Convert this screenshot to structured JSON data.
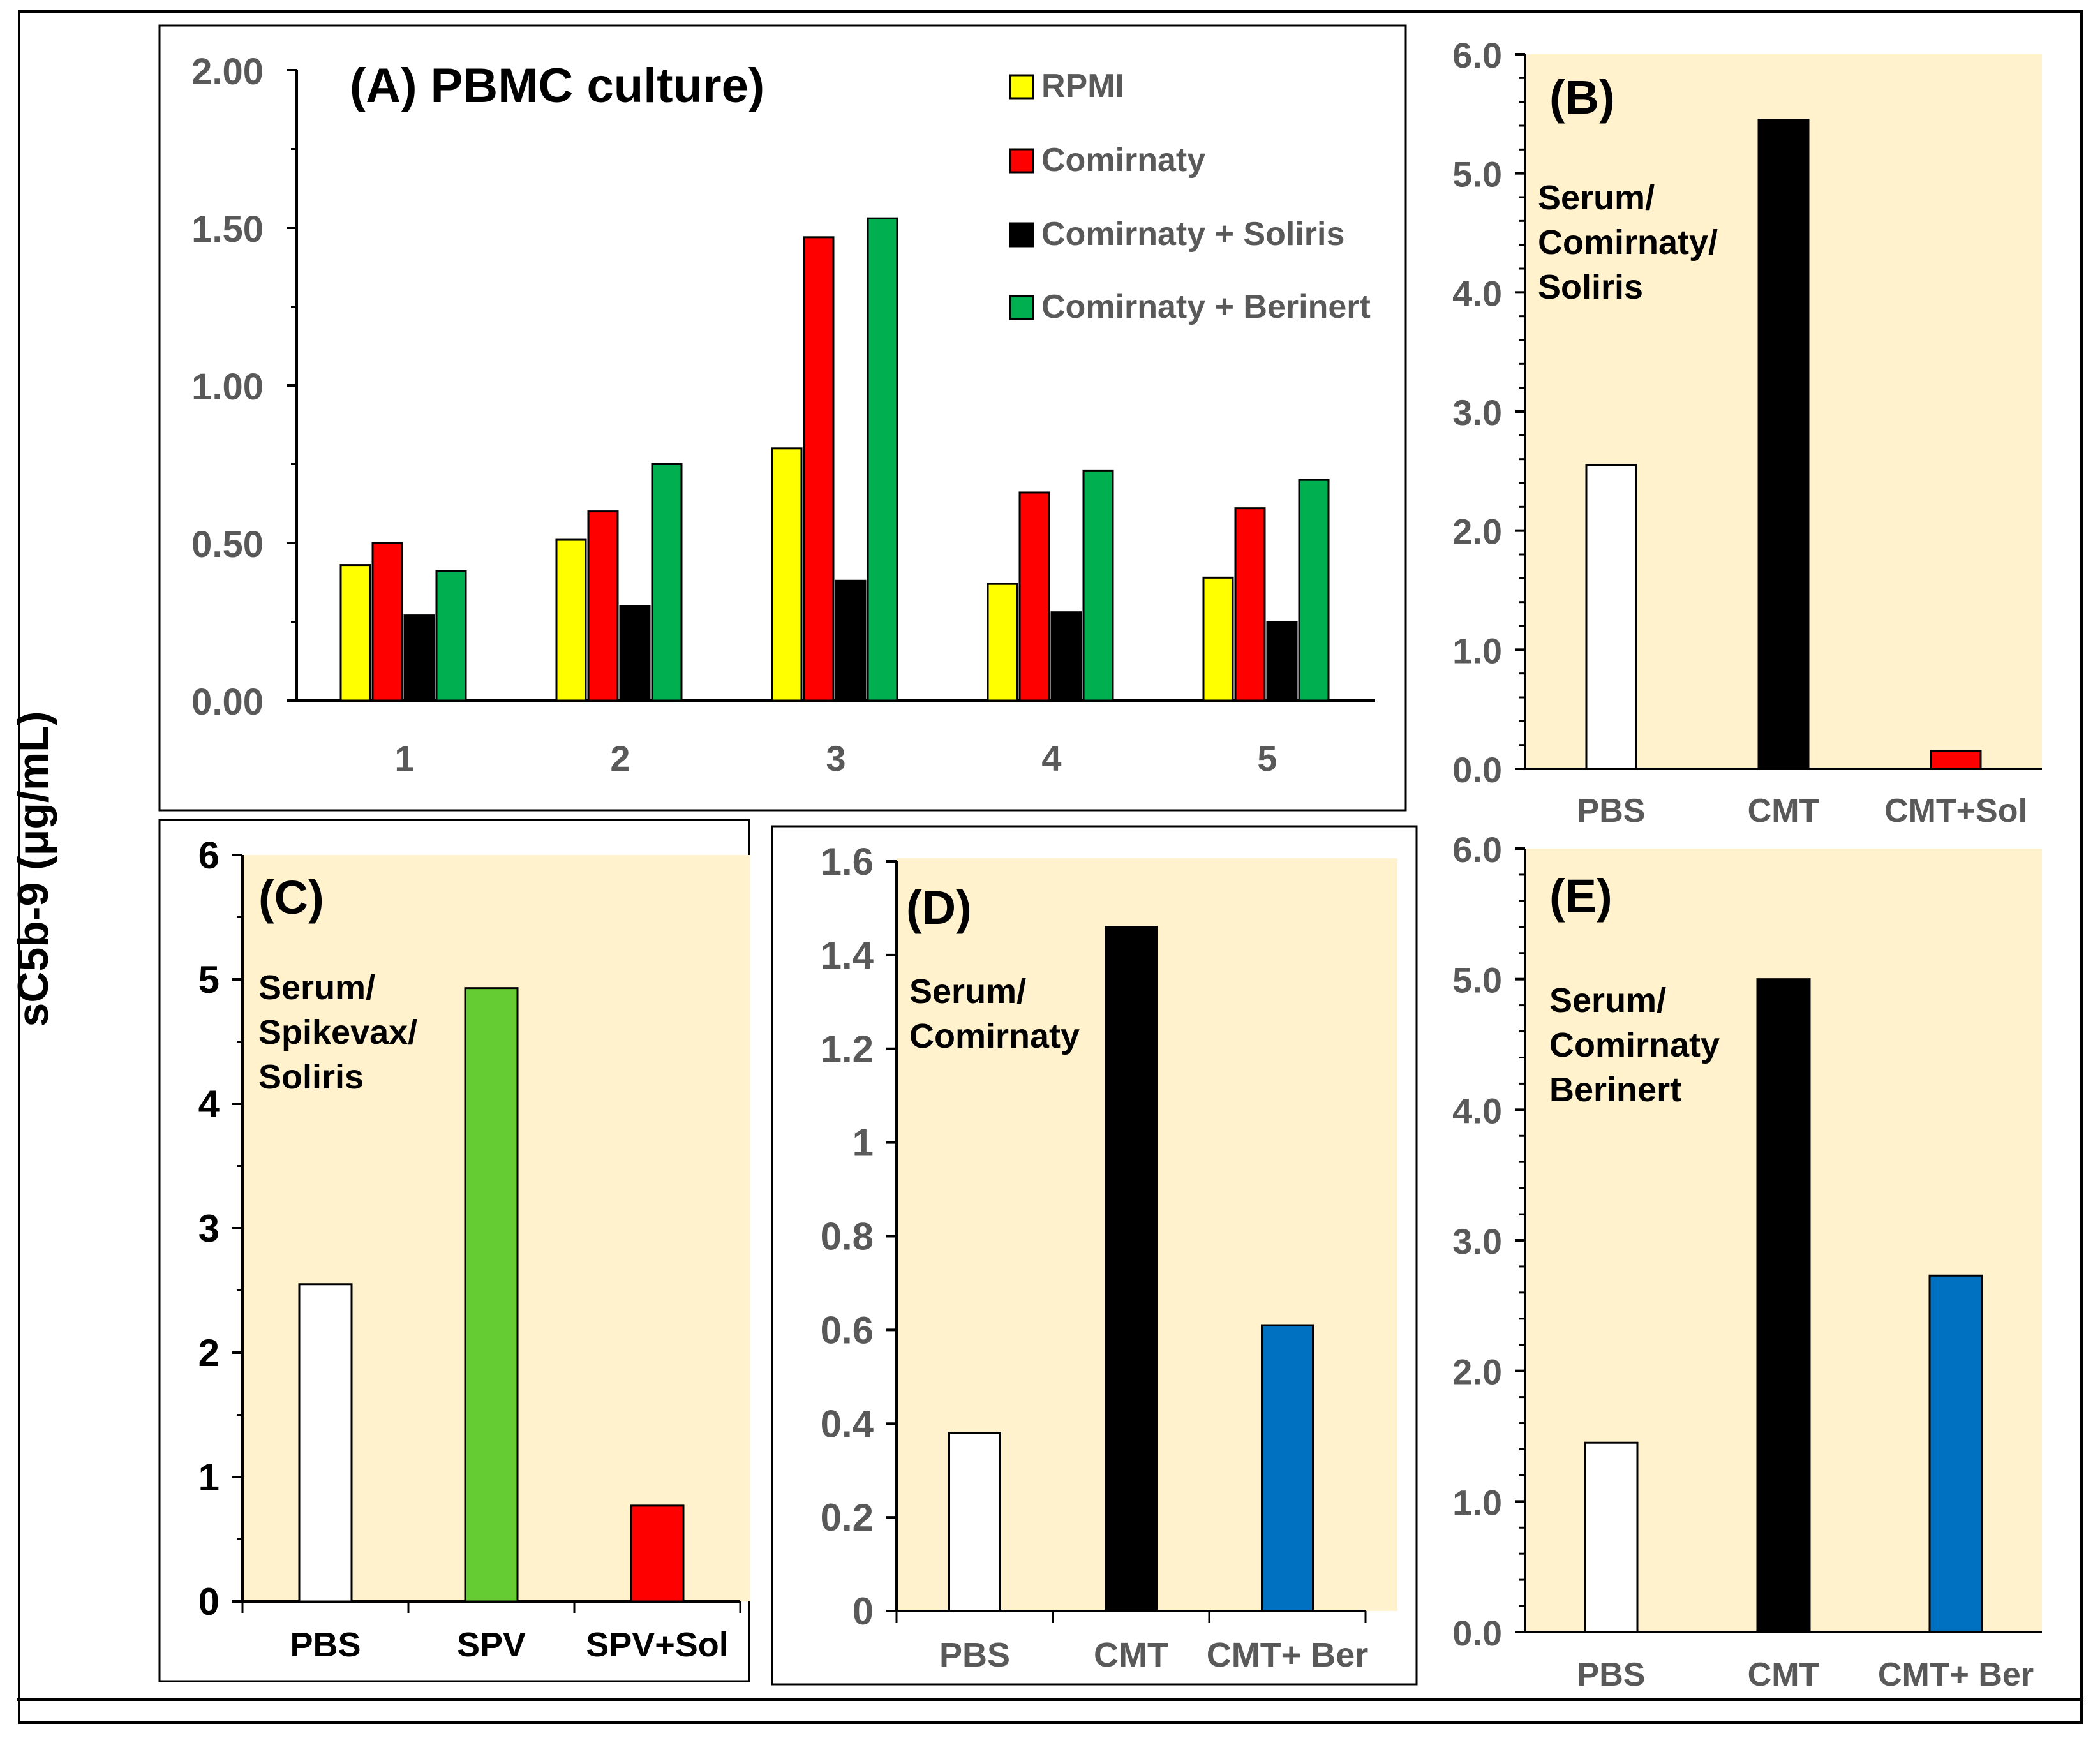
{
  "y_axis_label": "sC5b-9 (μg/mL)",
  "colors": {
    "rpmi": "#ffff00",
    "comirnaty": "#ff0000",
    "soliris": "#000000",
    "berinert": "#00b050",
    "panel_bg": "#fff2cc",
    "pbs": "#ffffff",
    "spikevax": "#66cc33",
    "berinert_serum": "#0070c0"
  },
  "chart_data": [
    {
      "id": "A",
      "type": "bar",
      "title": "(A) PBMC culture)",
      "categories": [
        "1",
        "2",
        "3",
        "4",
        "5"
      ],
      "series": [
        {
          "name": "RPMI",
          "values": [
            0.43,
            0.51,
            0.8,
            0.37,
            0.39
          ]
        },
        {
          "name": "Comirnaty",
          "values": [
            0.5,
            0.6,
            1.47,
            0.66,
            0.61
          ]
        },
        {
          "name": "Comirnaty + Soliris",
          "values": [
            0.27,
            0.3,
            0.38,
            0.28,
            0.25
          ]
        },
        {
          "name": "Comirnaty + Berinert",
          "values": [
            0.41,
            0.75,
            1.53,
            0.73,
            0.7
          ]
        }
      ],
      "ylim": [
        0,
        2.0
      ],
      "yticks": [
        "0.00",
        "0.50",
        "1.00",
        "1.50",
        "2.00"
      ],
      "legend_position": "top-right"
    },
    {
      "id": "B",
      "type": "bar",
      "title": "(B)",
      "annotation": [
        "Serum/",
        "Comirnaty/",
        "Soliris"
      ],
      "categories": [
        "PBS",
        "CMT",
        "CMT+Sol"
      ],
      "values": [
        2.55,
        5.45,
        0.15
      ],
      "ylim": [
        0,
        6.0
      ],
      "yticks": [
        "0.0",
        "1.0",
        "2.0",
        "3.0",
        "4.0",
        "5.0",
        "6.0"
      ]
    },
    {
      "id": "C",
      "type": "bar",
      "title": "(C)",
      "annotation": [
        "Serum/",
        "Spikevax/",
        "Soliris"
      ],
      "categories": [
        "PBS",
        "SPV",
        "SPV+Sol"
      ],
      "values": [
        2.55,
        4.93,
        0.77
      ],
      "ylim": [
        0,
        6
      ],
      "yticks": [
        "0",
        "1",
        "2",
        "3",
        "4",
        "5",
        "6"
      ]
    },
    {
      "id": "D",
      "type": "bar",
      "title": "(D)",
      "annotation": [
        "Serum/",
        "Comirnaty"
      ],
      "categories": [
        "PBS",
        "CMT",
        "CMT+ Ber"
      ],
      "values": [
        0.38,
        1.46,
        0.61
      ],
      "ylim": [
        0,
        1.6
      ],
      "yticks": [
        "0",
        "0.2",
        "0.4",
        "0.6",
        "0.8",
        "1",
        "1.2",
        "1.4",
        "1.6"
      ]
    },
    {
      "id": "E",
      "type": "bar",
      "title": "(E)",
      "annotation": [
        "Serum/",
        "Comirnaty",
        "Berinert"
      ],
      "categories": [
        "PBS",
        "CMT",
        "CMT+ Ber"
      ],
      "values": [
        1.45,
        5.0,
        2.73
      ],
      "ylim": [
        0,
        6.0
      ],
      "yticks": [
        "0.0",
        "1.0",
        "2.0",
        "3.0",
        "4.0",
        "5.0",
        "6.0"
      ]
    }
  ]
}
